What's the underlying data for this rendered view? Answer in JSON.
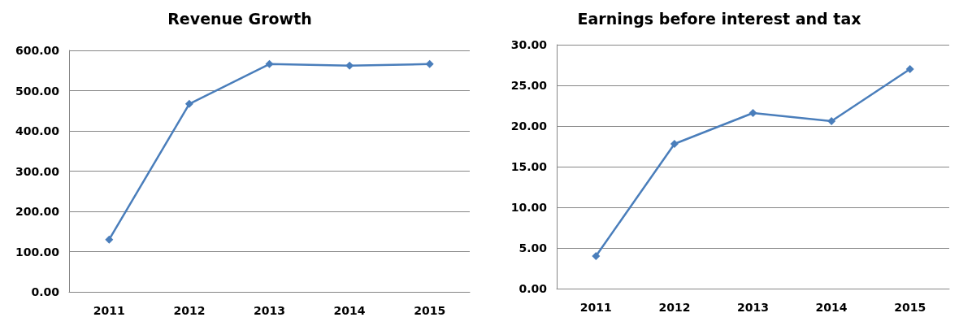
{
  "chart_data": [
    {
      "type": "line",
      "title": "Revenue Growth",
      "categories": [
        "2011",
        "2012",
        "2013",
        "2014",
        "2015"
      ],
      "series": [
        {
          "color": "#4a7ebb",
          "values": [
            130,
            467,
            566,
            562,
            566
          ]
        }
      ],
      "ylim": [
        0,
        600
      ],
      "yticks": [
        {
          "value": 0,
          "label": "0.00"
        },
        {
          "value": 100,
          "label": "100.00"
        },
        {
          "value": 200,
          "label": "200.00"
        },
        {
          "value": 300,
          "label": "300.00"
        },
        {
          "value": 400,
          "label": "400.00"
        },
        {
          "value": 500,
          "label": "500.00"
        },
        {
          "value": 600,
          "label": "600.00"
        }
      ],
      "grid": "y",
      "marker": "diamond",
      "line_style": "solid"
    },
    {
      "type": "line",
      "title": "Earnings before interest and tax",
      "categories": [
        "2011",
        "2012",
        "2013",
        "2014",
        "2015"
      ],
      "series": [
        {
          "color": "#4a7ebb",
          "values": [
            4.0,
            17.8,
            21.6,
            20.6,
            27.0
          ]
        }
      ],
      "ylim": [
        0,
        30
      ],
      "yticks": [
        {
          "value": 0,
          "label": "0.00"
        },
        {
          "value": 5,
          "label": "5.00"
        },
        {
          "value": 10,
          "label": "10.00"
        },
        {
          "value": 15,
          "label": "15.00"
        },
        {
          "value": 20,
          "label": "20.00"
        },
        {
          "value": 25,
          "label": "25.00"
        },
        {
          "value": 30,
          "label": "30.00"
        }
      ],
      "grid": "y",
      "marker": "diamond",
      "line_style": "solid"
    }
  ]
}
